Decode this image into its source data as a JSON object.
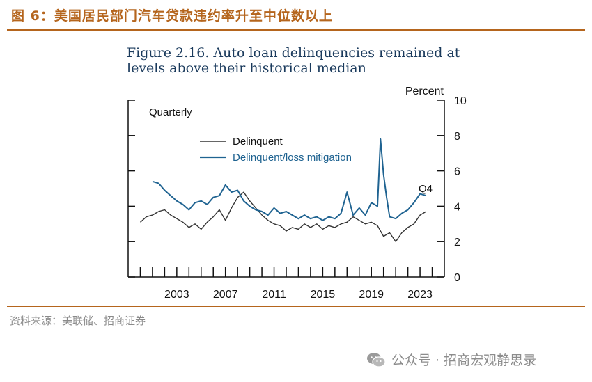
{
  "header": {
    "label": "图 6：美国居民部门汽车贷款违约率升至中位数以上"
  },
  "source": "资料来源：美联储、招商证券",
  "watermark": {
    "icon": "wechat-icon",
    "text": "公众号 · 招商宏观静思录"
  },
  "chart_data": {
    "type": "line",
    "title_line1": "Figure 2.16. Auto loan delinquencies remained at",
    "title_line2": "levels above their historical median",
    "frequency_label": "Quarterly",
    "ylabel": "Percent",
    "ylim": [
      0,
      10
    ],
    "yticks": [
      0,
      2,
      4,
      6,
      8,
      10
    ],
    "xlim": [
      1999.0,
      2025.0
    ],
    "xticks": [
      2003,
      2007,
      2011,
      2015,
      2019,
      2023
    ],
    "annotation": "Q4",
    "colors": {
      "delinquent": "#333333",
      "mitigation": "#1f6391"
    },
    "series": [
      {
        "name": "Delinquent",
        "x": [
          2000.0,
          2000.5,
          2001.0,
          2001.5,
          2002.0,
          2002.5,
          2003.0,
          2003.5,
          2004.0,
          2004.5,
          2005.0,
          2005.5,
          2006.0,
          2006.5,
          2007.0,
          2007.5,
          2008.0,
          2008.5,
          2009.0,
          2009.5,
          2010.0,
          2010.5,
          2011.0,
          2011.5,
          2012.0,
          2012.5,
          2013.0,
          2013.5,
          2014.0,
          2014.5,
          2015.0,
          2015.5,
          2016.0,
          2016.5,
          2017.0,
          2017.5,
          2018.0,
          2018.5,
          2019.0,
          2019.5,
          2020.0,
          2020.5,
          2021.0,
          2021.5,
          2022.0,
          2022.5,
          2023.0,
          2023.5
        ],
        "y": [
          3.1,
          3.4,
          3.5,
          3.7,
          3.8,
          3.5,
          3.3,
          3.1,
          2.8,
          3.0,
          2.7,
          3.1,
          3.4,
          3.8,
          3.2,
          3.9,
          4.5,
          4.8,
          4.3,
          3.9,
          3.5,
          3.2,
          3.0,
          2.9,
          2.6,
          2.8,
          2.7,
          3.0,
          2.8,
          3.0,
          2.7,
          2.9,
          2.8,
          3.0,
          3.1,
          3.4,
          3.2,
          3.0,
          3.1,
          2.9,
          2.3,
          2.5,
          2.0,
          2.5,
          2.8,
          3.0,
          3.5,
          3.7
        ]
      },
      {
        "name": "Delinquent/loss mitigation",
        "x": [
          2001.0,
          2001.5,
          2002.0,
          2002.5,
          2003.0,
          2003.5,
          2004.0,
          2004.5,
          2005.0,
          2005.5,
          2006.0,
          2006.5,
          2007.0,
          2007.5,
          2008.0,
          2008.5,
          2009.0,
          2009.5,
          2010.0,
          2010.5,
          2011.0,
          2011.5,
          2012.0,
          2012.5,
          2013.0,
          2013.5,
          2014.0,
          2014.5,
          2015.0,
          2015.5,
          2016.0,
          2016.5,
          2017.0,
          2017.5,
          2018.0,
          2018.5,
          2019.0,
          2019.5,
          2019.75,
          2020.0,
          2020.25,
          2020.5,
          2021.0,
          2021.5,
          2022.0,
          2022.5,
          2023.0,
          2023.5
        ],
        "y": [
          5.4,
          5.3,
          4.9,
          4.6,
          4.3,
          4.1,
          3.8,
          4.2,
          4.3,
          4.1,
          4.5,
          4.6,
          5.2,
          4.8,
          4.9,
          4.3,
          4.0,
          3.8,
          3.7,
          3.5,
          3.9,
          3.6,
          3.7,
          3.5,
          3.3,
          3.5,
          3.3,
          3.4,
          3.2,
          3.4,
          3.3,
          3.6,
          4.8,
          3.5,
          3.9,
          3.5,
          4.2,
          4.0,
          7.8,
          5.8,
          4.5,
          3.4,
          3.3,
          3.6,
          3.8,
          4.2,
          4.7,
          4.6
        ]
      }
    ]
  }
}
